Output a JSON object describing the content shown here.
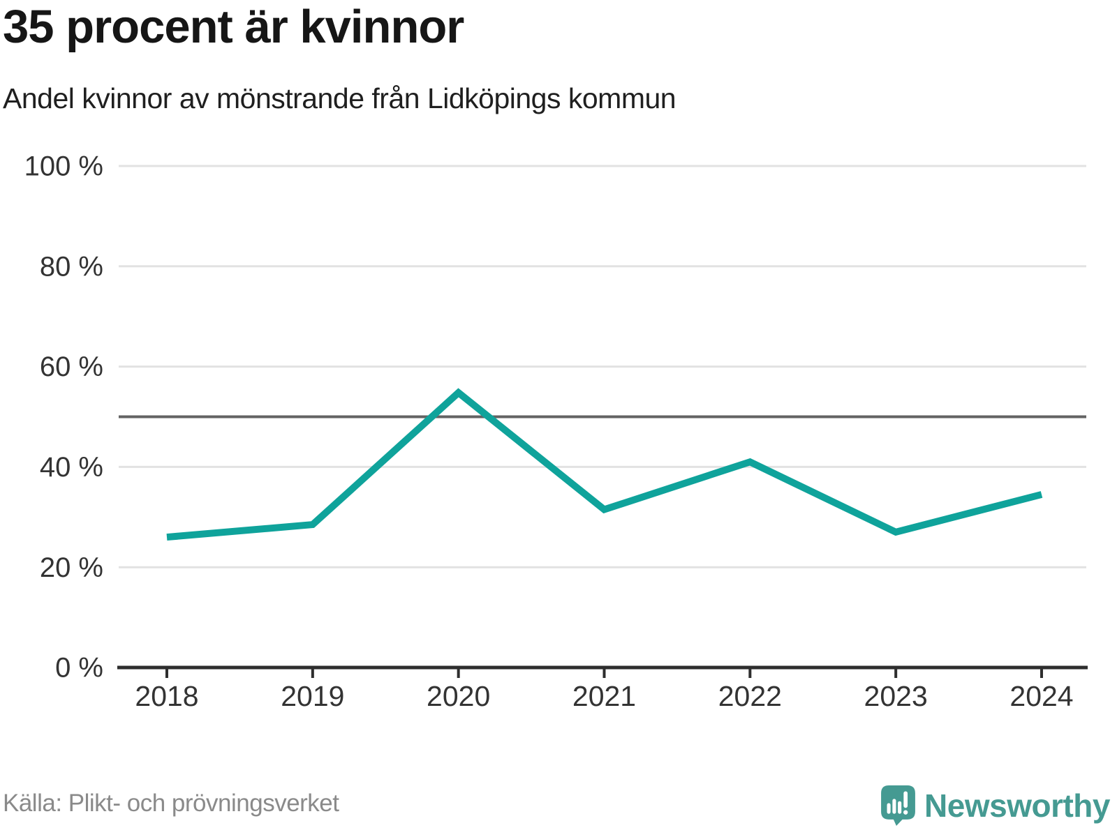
{
  "header": {
    "title": "35 procent är kvinnor",
    "subtitle": "Andel kvinnor av mönstrande från Lidköpings kommun"
  },
  "chart_data": {
    "type": "line",
    "title": "35 procent är kvinnor",
    "subtitle": "Andel kvinnor av mönstrande från Lidköpings kommun",
    "categories": [
      "2018",
      "2019",
      "2020",
      "2021",
      "2022",
      "2023",
      "2024"
    ],
    "series": [
      {
        "name": "Andel kvinnor av mönstrande",
        "values": [
          26,
          28.5,
          54.8,
          31.5,
          41,
          27,
          34.5
        ]
      }
    ],
    "xlabel": "",
    "ylabel": "",
    "ylim": [
      0,
      100
    ],
    "yticks": [
      0,
      20,
      40,
      60,
      80,
      100
    ],
    "ytick_suffix": " %",
    "reference_line_y": 50,
    "grid": true,
    "legend": "none",
    "line_color": "#0fa39b",
    "gridline_color": "#e2e2e2",
    "reference_line_color": "#636363",
    "axis_color": "#2e2e2e",
    "tick_label_color": "#333333"
  },
  "footer": {
    "source": "Källa: Plikt- och prövningsverket",
    "brand": "Newsworthy",
    "brand_color": "#459a92"
  }
}
